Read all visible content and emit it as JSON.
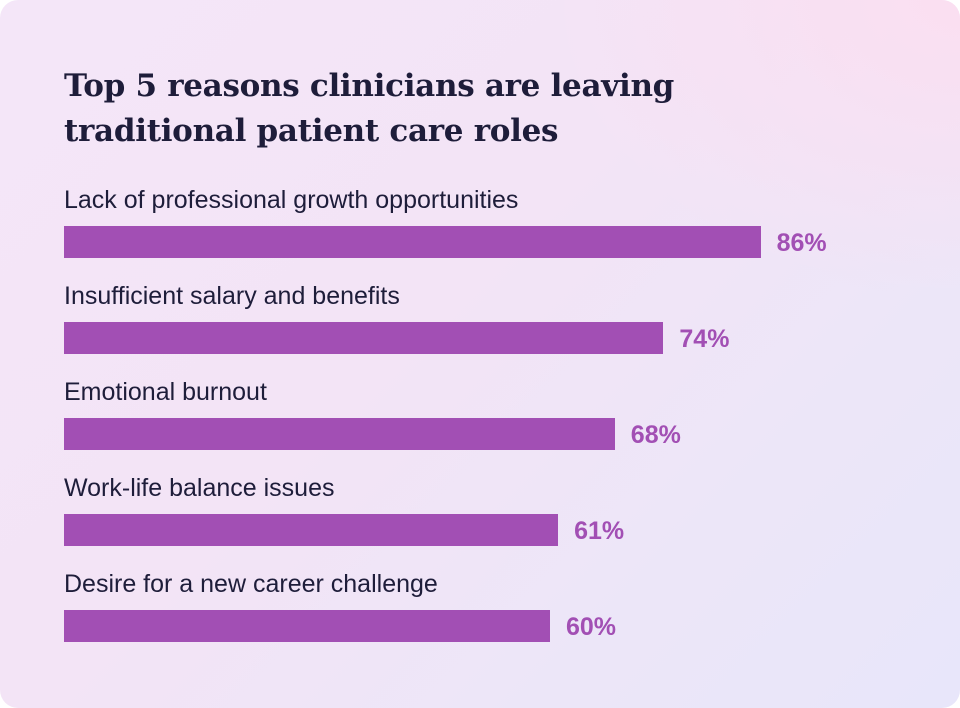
{
  "chart_data": {
    "type": "bar",
    "orientation": "horizontal",
    "title": "Top 5 reasons clinicians are leaving traditional patient care roles",
    "categories": [
      "Lack of professional growth opportunities",
      "Insufficient salary and benefits",
      "Emotional burnout",
      "Work-life balance issues",
      "Desire for a new career challenge"
    ],
    "values": [
      86,
      74,
      68,
      61,
      60
    ],
    "value_labels": [
      "86%",
      "74%",
      "68%",
      "61%",
      "60%"
    ],
    "unit": "%",
    "xlim": [
      0,
      100
    ],
    "grid": false,
    "legend": "none",
    "bar_color": "#a24fb4",
    "label_color": "#a24fb4",
    "title_color": "#1e1d3a"
  }
}
